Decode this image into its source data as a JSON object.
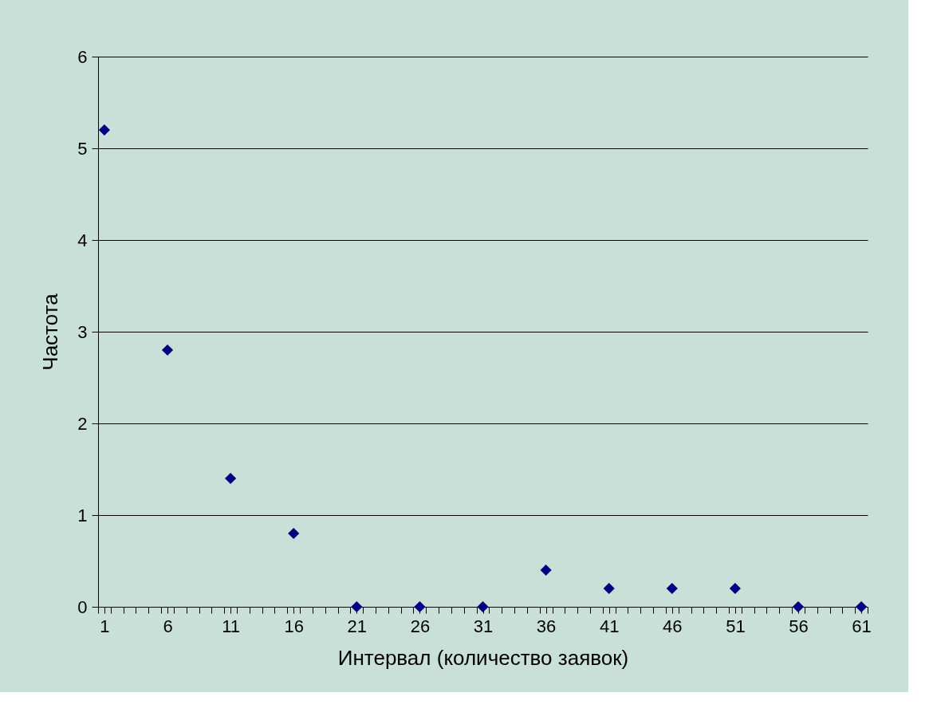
{
  "chart_data": {
    "type": "scatter",
    "xlabel": "Интервал (количество заявок)",
    "ylabel": "Частота",
    "x": [
      1,
      6,
      11,
      16,
      21,
      26,
      31,
      36,
      41,
      46,
      51,
      56,
      61
    ],
    "series": [
      {
        "color": "#000080",
        "values": [
          5.2,
          2.8,
          1.4,
          0.8,
          0,
          0,
          0,
          0.4,
          0.2,
          0.2,
          0.2,
          0,
          0
        ]
      }
    ],
    "xlim": [
      0.5,
      61.5
    ],
    "xticks": [
      1,
      6,
      11,
      16,
      21,
      26,
      31,
      36,
      41,
      46,
      51,
      56,
      61,
      {
        "value": 0.5,
        "label": null
      },
      {
        "value": 1.5,
        "label": null
      },
      {
        "value": 2.5,
        "label": null
      },
      {
        "value": 3.5,
        "label": null
      },
      {
        "value": 4.5,
        "label": null
      },
      {
        "value": 5.5,
        "label": null
      },
      {
        "value": 6.5,
        "label": null
      },
      {
        "value": 7.5,
        "label": null
      },
      {
        "value": 8.5,
        "label": null
      },
      {
        "value": 9.5,
        "label": null
      },
      {
        "value": 10.5,
        "label": null
      },
      {
        "value": 11.5,
        "label": null
      },
      {
        "value": 12.5,
        "label": null
      },
      {
        "value": 13.5,
        "label": null
      },
      {
        "value": 14.5,
        "label": null
      },
      {
        "value": 15.5,
        "label": null
      },
      {
        "value": 16.5,
        "label": null
      },
      {
        "value": 17.5,
        "label": null
      },
      {
        "value": 18.5,
        "label": null
      },
      {
        "value": 19.5,
        "label": null
      },
      {
        "value": 20.5,
        "label": null
      },
      {
        "value": 21.5,
        "label": null
      },
      {
        "value": 22.5,
        "label": null
      },
      {
        "value": 23.5,
        "label": null
      },
      {
        "value": 24.5,
        "label": null
      },
      {
        "value": 25.5,
        "label": null
      },
      {
        "value": 26.5,
        "label": null
      },
      {
        "value": 27.5,
        "label": null
      },
      {
        "value": 28.5,
        "label": null
      },
      {
        "value": 29.5,
        "label": null
      },
      {
        "value": 30.5,
        "label": null
      },
      {
        "value": 31.5,
        "label": null
      },
      {
        "value": 32.5,
        "label": null
      },
      {
        "value": 33.5,
        "label": null
      },
      {
        "value": 34.5,
        "label": null
      },
      {
        "value": 35.5,
        "label": null
      },
      {
        "value": 36.5,
        "label": null
      },
      {
        "value": 37.5,
        "label": null
      },
      {
        "value": 38.5,
        "label": null
      },
      {
        "value": 39.5,
        "label": null
      },
      {
        "value": 40.5,
        "label": null
      },
      {
        "value": 41.5,
        "label": null
      },
      {
        "value": 42.5,
        "label": null
      },
      {
        "value": 43.5,
        "label": null
      },
      {
        "value": 44.5,
        "label": null
      },
      {
        "value": 45.5,
        "label": null
      },
      {
        "value": 46.5,
        "label": null
      },
      {
        "value": 47.5,
        "label": null
      },
      {
        "value": 48.5,
        "label": null
      },
      {
        "value": 49.5,
        "label": null
      },
      {
        "value": 50.5,
        "label": null
      },
      {
        "value": 51.5,
        "label": null
      },
      {
        "value": 52.5,
        "label": null
      },
      {
        "value": 53.5,
        "label": null
      },
      {
        "value": 54.5,
        "label": null
      },
      {
        "value": 55.5,
        "label": null
      },
      {
        "value": 56.5,
        "label": null
      },
      {
        "value": 57.5,
        "label": null
      },
      {
        "value": 58.5,
        "label": null
      },
      {
        "value": 59.5,
        "label": null
      },
      {
        "value": 60.5,
        "label": null
      },
      {
        "value": 61.5,
        "label": null
      }
    ],
    "ylim": [
      0,
      6
    ],
    "yticks": [
      0,
      1,
      2,
      3,
      4,
      5,
      6
    ],
    "grid": "y",
    "marker": "diamond"
  }
}
